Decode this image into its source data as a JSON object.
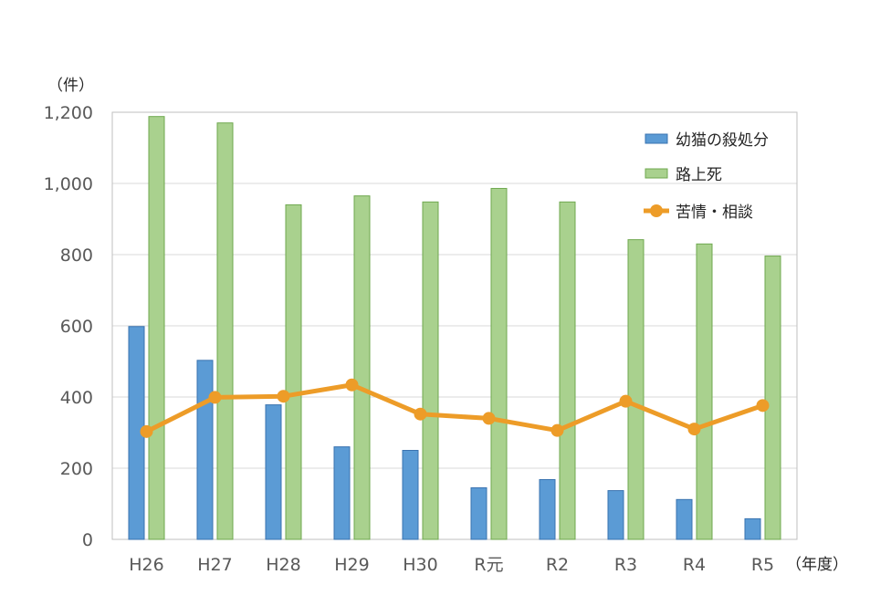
{
  "chart_data": {
    "type": "bar",
    "categories": [
      "H26",
      "H27",
      "H28",
      "H29",
      "H30",
      "R元",
      "R2",
      "R3",
      "R4",
      "R5"
    ],
    "series": [
      {
        "name": "幼猫の殺処分",
        "kind": "bar",
        "color": "#5b9bd5",
        "border": "#3a73b0",
        "values": [
          598,
          503,
          378,
          260,
          250,
          145,
          168,
          137,
          112,
          58
        ]
      },
      {
        "name": "路上死",
        "kind": "bar",
        "color": "#a9d18e",
        "border": "#6fa84f",
        "values": [
          1188,
          1170,
          940,
          965,
          948,
          986,
          948,
          842,
          830,
          796
        ]
      },
      {
        "name": "苦情・相談",
        "kind": "line",
        "color": "#ed9c28",
        "values": [
          303,
          399,
          402,
          434,
          352,
          340,
          306,
          388,
          310,
          376
        ]
      }
    ],
    "ylim": [
      0,
      1200
    ],
    "yticks": [
      0,
      200,
      400,
      600,
      800,
      1000,
      1200
    ],
    "ytick_labels": [
      "0",
      "200",
      "400",
      "600",
      "800",
      "1,000",
      "1,200"
    ],
    "y_unit_label": "（件）",
    "x_unit_label": "（年度）",
    "grid": true,
    "legend": "top-right"
  }
}
